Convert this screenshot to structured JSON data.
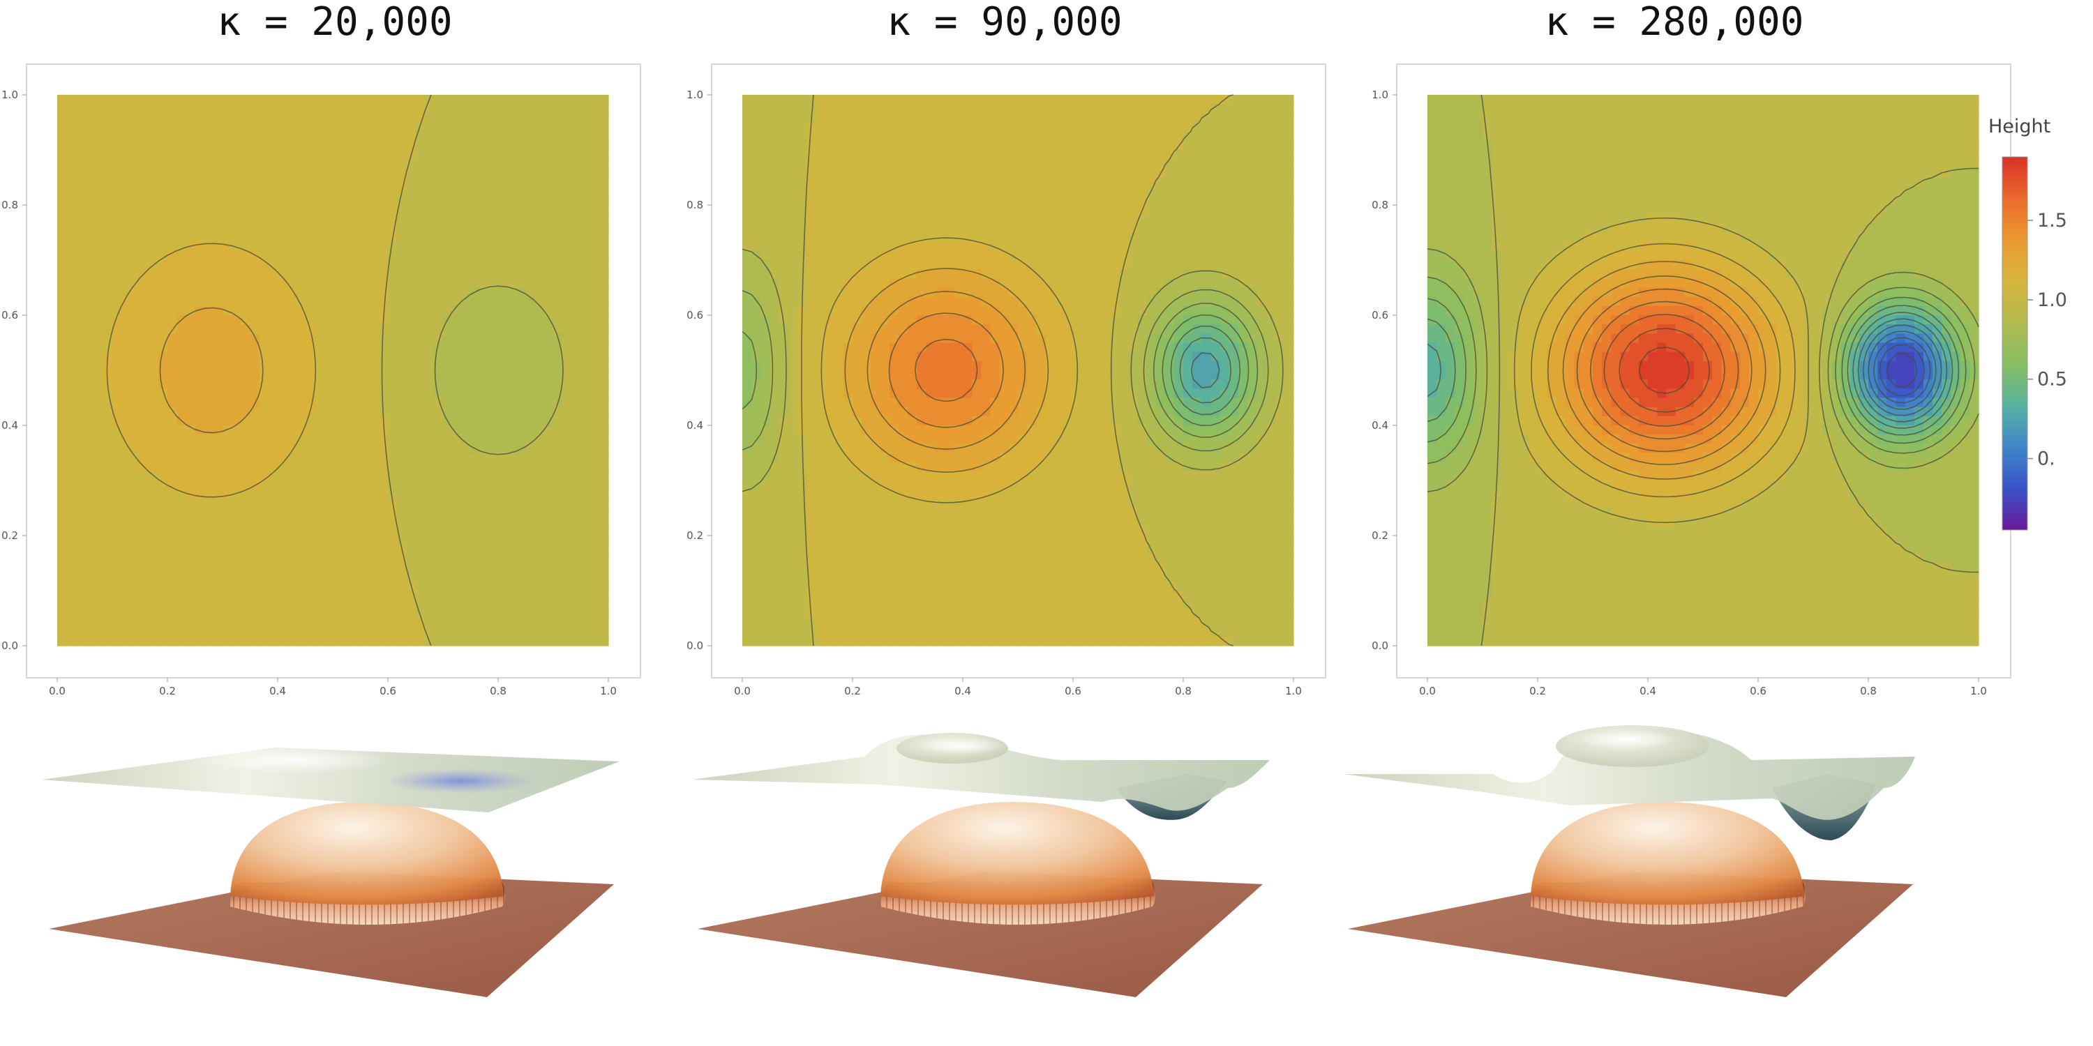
{
  "legend": {
    "title": "Height",
    "ticks": [
      "1.5",
      "1.0",
      "0.5",
      "0."
    ],
    "tick_values": [
      1.5,
      1.0,
      0.5,
      0.0
    ],
    "range": [
      -0.45,
      1.9
    ],
    "colors": [
      "#6a1a9a",
      "#3a52c8",
      "#3f86c9",
      "#58b1a0",
      "#86bf63",
      "#b1bb4f",
      "#d6b53c",
      "#ea9a32",
      "#ea6a2c",
      "#d83228"
    ]
  },
  "chart_data": [
    {
      "type": "contour",
      "title": "κ = 20,000",
      "x_ticks": [
        "0.0",
        "0.2",
        "0.4",
        "0.6",
        "0.8",
        "1.0"
      ],
      "y_ticks": [
        "0.0",
        "0.2",
        "0.4",
        "0.6",
        "0.8",
        "1.0"
      ],
      "xlim": [
        0,
        1
      ],
      "ylim": [
        0,
        1
      ],
      "grid": false,
      "background_level": 1.0,
      "features": [
        {
          "x": 0.28,
          "y": 0.5,
          "peak": 1.25,
          "sx": 0.14,
          "sy": 0.17
        },
        {
          "x": 0.8,
          "y": 0.5,
          "peak": 0.8,
          "sx": 0.1,
          "sy": 0.13
        }
      ]
    },
    {
      "type": "contour",
      "title": "κ = 90,000",
      "x_ticks": [
        "0.0",
        "0.2",
        "0.4",
        "0.6",
        "0.8",
        "1.0"
      ],
      "y_ticks": [
        "0.0",
        "0.2",
        "0.4",
        "0.6",
        "0.8",
        "1.0"
      ],
      "xlim": [
        0,
        1
      ],
      "ylim": [
        0,
        1
      ],
      "grid": false,
      "background_level": 1.0,
      "features": [
        {
          "x": 0.37,
          "y": 0.5,
          "peak": 1.55,
          "sx": 0.13,
          "sy": 0.13
        },
        {
          "x": 0.84,
          "y": 0.5,
          "peak": 0.25,
          "sx": 0.07,
          "sy": 0.09
        },
        {
          "x": 0.0,
          "y": 0.5,
          "peak": 0.65,
          "sx": 0.06,
          "sy": 0.14
        }
      ]
    },
    {
      "type": "contour",
      "title": "κ = 280,000",
      "x_ticks": [
        "0.0",
        "0.2",
        "0.4",
        "0.6",
        "0.8",
        "1.0"
      ],
      "y_ticks": [
        "0.0",
        "0.2",
        "0.4",
        "0.6",
        "0.8",
        "1.0"
      ],
      "xlim": [
        0,
        1
      ],
      "ylim": [
        0,
        1
      ],
      "grid": false,
      "background_level": 0.9,
      "features": [
        {
          "x": 0.43,
          "y": 0.5,
          "peak": 1.85,
          "sx": 0.14,
          "sy": 0.13
        },
        {
          "x": 0.86,
          "y": 0.5,
          "peak": -0.3,
          "sx": 0.07,
          "sy": 0.08
        },
        {
          "x": 0.0,
          "y": 0.5,
          "peak": 0.35,
          "sx": 0.07,
          "sy": 0.12
        }
      ]
    }
  ]
}
